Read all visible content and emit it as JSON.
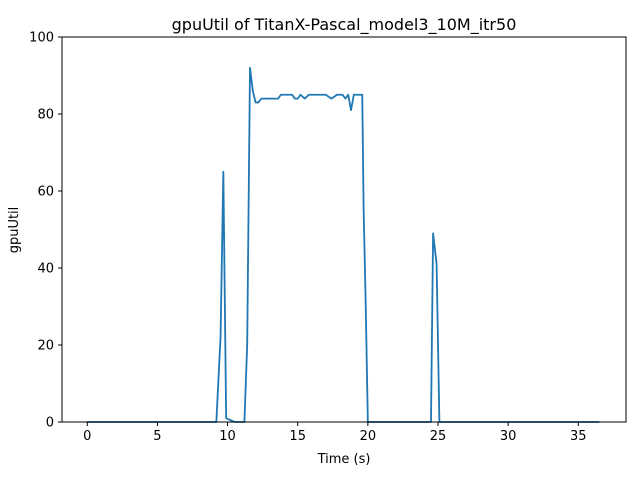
{
  "chart_data": {
    "type": "line",
    "title": "gpuUtil of TitanX-Pascal_model3_10M_itr50",
    "xlabel": "Time (s)",
    "ylabel": "gpuUtil",
    "xlim": [
      -1.8,
      38.4
    ],
    "ylim": [
      0,
      100
    ],
    "xticks": [
      0,
      5,
      10,
      15,
      20,
      25,
      30,
      35
    ],
    "yticks": [
      0,
      20,
      40,
      60,
      80,
      100
    ],
    "grid": false,
    "series": [
      {
        "color": "#1f77b4",
        "x": [
          0,
          9.2,
          9.5,
          9.7,
          9.9,
          10.5,
          11.2,
          11.4,
          11.6,
          11.8,
          12.0,
          12.2,
          12.4,
          12.7,
          13.0,
          13.3,
          13.6,
          13.8,
          14.2,
          14.6,
          14.8,
          15.0,
          15.2,
          15.5,
          15.8,
          16.2,
          16.6,
          17.0,
          17.4,
          17.8,
          18.0,
          18.2,
          18.4,
          18.6,
          18.8,
          19.0,
          19.3,
          19.6,
          19.7,
          19.85,
          20.0,
          24.5,
          24.65,
          24.9,
          25.1,
          36.5
        ],
        "y": [
          0,
          0,
          22,
          65,
          1,
          0,
          0,
          20,
          92,
          86,
          83,
          83,
          84,
          84,
          84,
          84,
          84,
          85,
          85,
          85,
          84,
          84,
          85,
          84,
          85,
          85,
          85,
          85,
          84,
          85,
          85,
          85,
          84,
          85,
          81,
          85,
          85,
          85,
          55,
          30,
          0,
          0,
          49,
          41,
          0,
          0
        ]
      }
    ]
  }
}
